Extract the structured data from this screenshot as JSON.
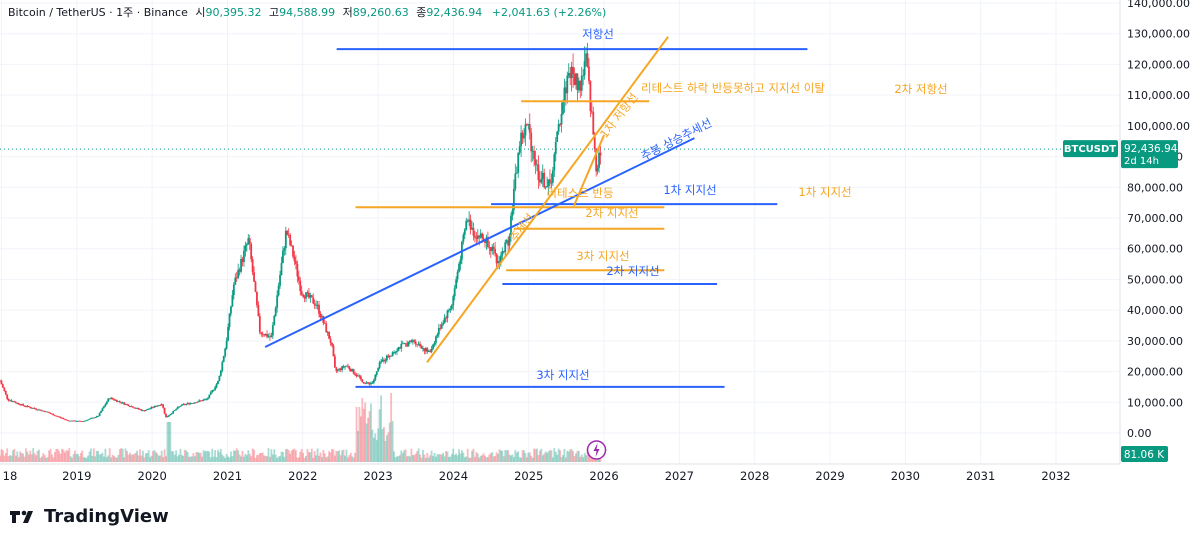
{
  "header": {
    "symbol": "Bitcoin / TetherUS · 1주 · Binance",
    "open_label": "시",
    "open": "90,395.32",
    "high_label": "고",
    "high": "94,588.99",
    "low_label": "저",
    "low": "89,260.63",
    "close_label": "종",
    "close": "92,436.94",
    "change": "+2,041.63 (+2.26%)"
  },
  "brand": {
    "name": "TradingView",
    "icon": "tradingview-logo"
  },
  "price_tag": {
    "symbol": "BTCUSDT",
    "price": "92,436.94",
    "countdown": "2d 14h",
    "color": "#089981"
  },
  "volume_tag": {
    "value": "81.06 K",
    "color": "#089981"
  },
  "chart_data": {
    "type": "candlestick",
    "y_ticks": [
      "140,000.00",
      "130,000.00",
      "120,000.00",
      "110,000.00",
      "100,000.00",
      "90,000.00",
      "80,000.00",
      "70,000.00",
      "60,000.00",
      "50,000.00",
      "40,000.00",
      "30,000.00",
      "20,000.00",
      "10,000.00",
      "0.00"
    ],
    "y_tick_values": [
      140000,
      130000,
      120000,
      110000,
      100000,
      90000,
      80000,
      70000,
      60000,
      50000,
      40000,
      30000,
      20000,
      10000,
      0
    ],
    "x_ticks": [
      "18",
      "2019",
      "2020",
      "2021",
      "2022",
      "2023",
      "2024",
      "2025",
      "2026",
      "2027",
      "2028",
      "2029",
      "2030",
      "2031",
      "2032"
    ],
    "x_tick_values": [
      2018,
      2019,
      2020,
      2021,
      2022,
      2023,
      2024,
      2025,
      2026,
      2027,
      2028,
      2029,
      2030,
      2031,
      2032
    ],
    "xlim": [
      2017.98,
      2032.85
    ],
    "ylim": [
      0,
      141000
    ],
    "last_price": 92436.94,
    "price_path": [
      [
        2018.0,
        17000
      ],
      [
        2018.1,
        11000
      ],
      [
        2018.3,
        9000
      ],
      [
        2018.6,
        7000
      ],
      [
        2018.9,
        4000
      ],
      [
        2019.1,
        3800
      ],
      [
        2019.3,
        5500
      ],
      [
        2019.45,
        11500
      ],
      [
        2019.6,
        10000
      ],
      [
        2019.9,
        7200
      ],
      [
        2020.15,
        9500
      ],
      [
        2020.2,
        5000
      ],
      [
        2020.4,
        9000
      ],
      [
        2020.75,
        11000
      ],
      [
        2020.9,
        17000
      ],
      [
        2021.0,
        29000
      ],
      [
        2021.1,
        48000
      ],
      [
        2021.3,
        63000
      ],
      [
        2021.45,
        33000
      ],
      [
        2021.6,
        31000
      ],
      [
        2021.8,
        66000
      ],
      [
        2021.9,
        57000
      ],
      [
        2022.0,
        46000
      ],
      [
        2022.2,
        42000
      ],
      [
        2022.4,
        29000
      ],
      [
        2022.45,
        20000
      ],
      [
        2022.6,
        22000
      ],
      [
        2022.85,
        16000
      ],
      [
        2022.95,
        16500
      ],
      [
        2023.05,
        23000
      ],
      [
        2023.3,
        28000
      ],
      [
        2023.5,
        30000
      ],
      [
        2023.7,
        26000
      ],
      [
        2023.85,
        35000
      ],
      [
        2024.0,
        42000
      ],
      [
        2024.2,
        70000
      ],
      [
        2024.3,
        65000
      ],
      [
        2024.5,
        62000
      ],
      [
        2024.6,
        55000
      ],
      [
        2024.75,
        63000
      ],
      [
        2024.9,
        95000
      ],
      [
        2025.0,
        100000
      ],
      [
        2025.15,
        84000
      ],
      [
        2025.3,
        80000
      ],
      [
        2025.45,
        105000
      ],
      [
        2025.55,
        118000
      ],
      [
        2025.7,
        113000
      ],
      [
        2025.78,
        122000
      ],
      [
        2025.85,
        104000
      ],
      [
        2025.92,
        86000
      ],
      [
        2025.96,
        92437
      ]
    ],
    "volume_note": "bars",
    "lines": [
      {
        "color": "#2962ff",
        "x1": 2018.95,
        "y1": null
      },
      {
        "color": "#f5a623"
      }
    ],
    "annotations": [
      {
        "text": "저항선",
        "color": "#2962ff"
      },
      {
        "text": "리테스트 하락 반등못하고 지지선 이탈",
        "color": "#f5a623"
      },
      {
        "text": "2차 저항선",
        "color": "#f5a623"
      },
      {
        "text": "1차 저항선",
        "color": "#f5a623"
      },
      {
        "text": "추봉 상승추세선",
        "color": "#2962ff"
      },
      {
        "text": "리테스트 반등",
        "color": "#f5a623"
      },
      {
        "text": "1차 지지선",
        "color": "#2962ff"
      },
      {
        "text": "1차 지지선",
        "color": "#f5a623"
      },
      {
        "text": "2차 지지선",
        "color": "#f5a623"
      },
      {
        "text": "3차 지지선",
        "color": "#f5a623"
      },
      {
        "text": "2차 지지선",
        "color": "#2962ff"
      },
      {
        "text": "3차 지지선",
        "color": "#2962ff"
      },
      {
        "text": "추세선",
        "color": "#f5a623"
      }
    ],
    "drawings": [
      {
        "kind": "hline",
        "x1": 2022.45,
        "x2": 2028.7,
        "y": 125000,
        "color": "#2962ff"
      },
      {
        "kind": "hline",
        "x1": 2024.9,
        "x2": 2026.6,
        "y": 108000,
        "color": "#f5a623"
      },
      {
        "kind": "hline",
        "x1": 2022.7,
        "x2": 2026.8,
        "y": 73500,
        "color": "#f5a623"
      },
      {
        "kind": "hline",
        "x1": 2024.5,
        "x2": 2028.3,
        "y": 74500,
        "color": "#2962ff"
      },
      {
        "kind": "hline",
        "x1": 2024.8,
        "x2": 2026.8,
        "y": 66500,
        "color": "#f5a623"
      },
      {
        "kind": "hline",
        "x1": 2024.7,
        "x2": 2026.8,
        "y": 53000,
        "color": "#f5a623"
      },
      {
        "kind": "hline",
        "x1": 2024.65,
        "x2": 2027.5,
        "y": 48500,
        "color": "#2962ff"
      },
      {
        "kind": "hline",
        "x1": 2022.7,
        "x2": 2027.6,
        "y": 15000,
        "color": "#2962ff"
      },
      {
        "kind": "seg",
        "x1": 2021.5,
        "y1": 28000,
        "x2": 2027.2,
        "y2": 96000,
        "color": "#2962ff"
      },
      {
        "kind": "seg",
        "x1": 2023.65,
        "y1": 23000,
        "x2": 2026.85,
        "y2": 129000,
        "color": "#f5a623"
      },
      {
        "kind": "seg",
        "x1": 2025.6,
        "y1": 74000,
        "x2": 2026.0,
        "y2": 97000,
        "color": "#f5a623"
      }
    ]
  }
}
